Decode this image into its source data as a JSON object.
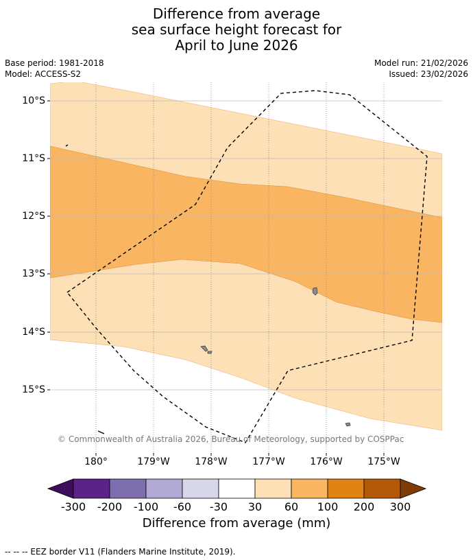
{
  "title": {
    "line1": "Difference from average",
    "line2": "sea surface height forecast for",
    "line3": "April to June 2026"
  },
  "meta": {
    "base_period": "Base period: 1981-2018",
    "model": "Model: ACCESS-S2",
    "model_run": "Model run: 21/02/2026",
    "issued": "Issued: 23/02/2026"
  },
  "map": {
    "lat_labels": [
      "10°S",
      "11°S",
      "12°S",
      "13°S",
      "14°S",
      "15°S"
    ],
    "lon_labels": [
      "180°",
      "179°W",
      "178°W",
      "177°W",
      "176°W",
      "175°W"
    ],
    "copyright": "© Commonwealth of Australia 2026, Bureau of Meteorology, supported by COSPPac",
    "colors": {
      "band_30_60": "#fde0b6",
      "band_60_100": "#f9b562",
      "land": "#8c8c8c",
      "eez": "#000000",
      "grid_lat": "#bbbbbb",
      "grid_lon": "#888888"
    }
  },
  "colorbar": {
    "title": "Difference from average (mm)",
    "ticks": [
      "-300",
      "-200",
      "-100",
      "-60",
      "-30",
      "30",
      "60",
      "100",
      "200",
      "300"
    ],
    "colors": [
      "#3f0d5e",
      "#5b2388",
      "#7f6eaf",
      "#b1a9d3",
      "#d7d7ea",
      "#ffffff",
      "#fde0b6",
      "#f9b562",
      "#e08214",
      "#b35806",
      "#7f3b08"
    ]
  },
  "footnote": "--  --  -- EEZ border V11 (Flanders Marine Institute, 2019)."
}
